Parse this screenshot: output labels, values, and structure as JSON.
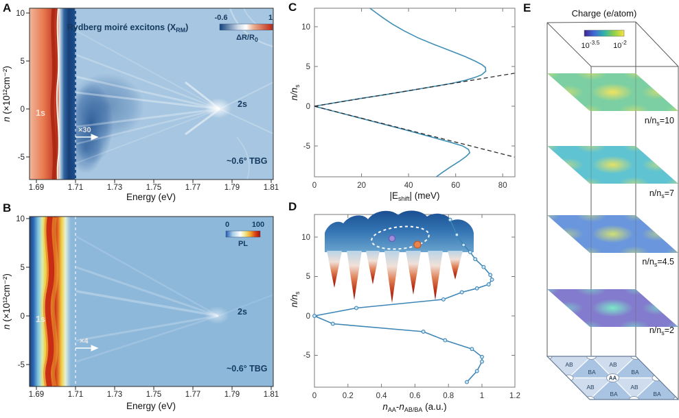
{
  "figure": {
    "description": "Rydberg moire excitons in ~0.6 deg twisted bilayer graphene figure with five panels"
  },
  "panels": {
    "a": {
      "letter": "A",
      "title_pre": "Rydberg moiré excitons (X",
      "title_sub": "RM",
      "title_post": ")",
      "cbar_min": "-0.6",
      "cbar_max": "1",
      "cbar_label_pre": "ΔR/R",
      "cbar_label_sub": "0",
      "xlabel": "Energy (eV)",
      "ylabel_n": "n",
      "ylabel_rest": " (×10¹²cm⁻²)",
      "x_ticks": [
        "1.69",
        "1.71",
        "1.73",
        "1.75",
        "1.77",
        "1.79",
        "1.81"
      ],
      "y_ticks": [
        "10",
        "5",
        "0",
        "-5"
      ],
      "ann_1s": "1s",
      "ann_2s": "2s",
      "ann_gain": "×30",
      "ann_sample": "~0.6° TBG"
    },
    "b": {
      "letter": "B",
      "cbar_min": "0",
      "cbar_max": "100",
      "cbar_label": "PL",
      "xlabel": "Energy (eV)",
      "ylabel_n": "n",
      "ylabel_rest": " (×10¹²cm⁻²)",
      "x_ticks": [
        "1.69",
        "1.71",
        "1.73",
        "1.75",
        "1.77",
        "1.79",
        "1.81"
      ],
      "y_ticks": [
        "10",
        "5",
        "0",
        "-5"
      ],
      "ann_1s": "1s",
      "ann_2s": "2s",
      "ann_gain": "×4",
      "ann_sample": "~0.6° TBG"
    },
    "c": {
      "letter": "C",
      "ylabel_pre": "n/n",
      "ylabel_sub": "s",
      "xlabel_pre": "|E",
      "xlabel_sub": "shift",
      "xlabel_post": "| (meV)",
      "x_ticks": [
        "0",
        "20",
        "40",
        "60",
        "80"
      ],
      "y_ticks": [
        "10",
        "5",
        "0",
        "-5"
      ]
    },
    "d": {
      "letter": "D",
      "ylabel_pre": "n/n",
      "ylabel_sub": "s",
      "xlabel_n1": "n",
      "xlabel_sub1": "AA",
      "xlabel_dash": "-",
      "xlabel_n2": "n",
      "xlabel_sub2": "AB/BA",
      "xlabel_post": " (a.u.)",
      "x_ticks": [
        "0",
        "0.2",
        "0.4",
        "0.6",
        "0.8",
        "1",
        "1.2"
      ],
      "y_ticks": [
        "10",
        "5",
        "0",
        "-5"
      ]
    },
    "e": {
      "letter": "E",
      "title": "Charge (e/atom)",
      "cbar_min_base": "10",
      "cbar_min_sup": "-3.5",
      "cbar_max_base": "10",
      "cbar_max_sup": "-2",
      "plane_pre": "n/n",
      "plane_sub": "s",
      "plane_posts": [
        "=10",
        "=7",
        "=4.5",
        "=2"
      ],
      "region_ab": "AB",
      "region_ba": "BA",
      "region_aa": "AA"
    }
  },
  "chart_data": [
    {
      "id": "A",
      "type": "heatmap",
      "title": "Rydberg moiré excitons (X_RM)",
      "xlabel": "Energy (eV)",
      "ylabel": "n (×10^12 cm^-2)",
      "xlim": [
        1.69,
        1.81
      ],
      "ylim": [
        -7.3,
        10.5
      ],
      "x_tick_values": [
        1.69,
        1.71,
        1.73,
        1.75,
        1.77,
        1.79,
        1.81
      ],
      "y_tick_values": [
        10,
        5,
        0,
        -5
      ],
      "colorbar": {
        "label": "ΔR/R_0",
        "min": -0.6,
        "max": 1
      },
      "annotations": [
        "1s",
        "2s",
        "×30",
        "~0.6° TBG"
      ],
      "features": {
        "resonance_1s_eV": 1.7,
        "resonance_2s_eV": 1.785,
        "dashed_boundary_eV": 1.71,
        "amplification_right_of_boundary": "×30"
      }
    },
    {
      "id": "B",
      "type": "heatmap",
      "title": "",
      "xlabel": "Energy (eV)",
      "ylabel": "n (×10^12 cm^-2)",
      "xlim": [
        1.69,
        1.81
      ],
      "ylim": [
        -7.25,
        10.2
      ],
      "x_tick_values": [
        1.69,
        1.71,
        1.73,
        1.75,
        1.77,
        1.79,
        1.81
      ],
      "y_tick_values": [
        10,
        5,
        0,
        -5
      ],
      "colorbar": {
        "label": "PL",
        "min": 0,
        "max": 100
      },
      "annotations": [
        "1s",
        "2s",
        "×4",
        "~0.6° TBG"
      ],
      "features": {
        "resonance_1s_eV": 1.701,
        "resonance_2s_eV": 1.783,
        "dashed_boundary_eV": 1.71,
        "amplification_right_of_boundary": "×4"
      }
    },
    {
      "id": "C",
      "type": "line",
      "xlabel": "|E_shift| (meV)",
      "ylabel": "n/n_s",
      "xlim": [
        0,
        85
      ],
      "ylim": [
        -8.9,
        12.4
      ],
      "grid": false,
      "series": [
        {
          "name": "energy-shift-upper-branch",
          "style": "solid",
          "color": "#3f8fb4",
          "points": [
            [
              0,
              0
            ],
            [
              10,
              0.5
            ],
            [
              20,
              1.0
            ],
            [
              30,
              1.45
            ],
            [
              40,
              1.95
            ],
            [
              50,
              2.45
            ],
            [
              58,
              2.85
            ],
            [
              64,
              3.25
            ],
            [
              68,
              3.6
            ],
            [
              71,
              3.95
            ],
            [
              72.8,
              4.4
            ],
            [
              72.7,
              4.85
            ],
            [
              71.3,
              5.2
            ],
            [
              68.5,
              5.65
            ],
            [
              64,
              6.25
            ],
            [
              58,
              6.95
            ],
            [
              51,
              7.75
            ],
            [
              44,
              8.6
            ],
            [
              38,
              9.5
            ],
            [
              33,
              10.35
            ],
            [
              29,
              11.15
            ],
            [
              26,
              11.8
            ],
            [
              23.5,
              12.35
            ]
          ]
        },
        {
          "name": "energy-shift-lower-branch",
          "style": "solid",
          "color": "#3f8fb4",
          "points": [
            [
              0,
              0
            ],
            [
              13,
              -1
            ],
            [
              26,
              -2
            ],
            [
              39,
              -3
            ],
            [
              50,
              -3.9
            ],
            [
              58,
              -4.55
            ],
            [
              63,
              -5.0
            ],
            [
              65.5,
              -5.45
            ],
            [
              66,
              -5.85
            ],
            [
              64.5,
              -6.3
            ],
            [
              61.5,
              -6.95
            ],
            [
              58,
              -7.6
            ],
            [
              54.5,
              -8.3
            ],
            [
              51.5,
              -8.95
            ]
          ]
        },
        {
          "name": "linear-fit-upper",
          "style": "dashed",
          "color": "#2a2a2a",
          "points": [
            [
              0,
              0
            ],
            [
              85,
              4.15
            ]
          ]
        },
        {
          "name": "linear-fit-lower",
          "style": "dashed",
          "color": "#2a2a2a",
          "points": [
            [
              0,
              0
            ],
            [
              85,
              -6.4
            ]
          ]
        }
      ]
    },
    {
      "id": "D",
      "type": "line-scatter",
      "xlabel": "n_AA-n_AB/BA (a.u.)",
      "ylabel": "n/n_s",
      "xlim": [
        0,
        1.2
      ],
      "ylim": [
        -9.0,
        12.9
      ],
      "grid": false,
      "series": [
        {
          "name": "charge-contrast",
          "style": "solid-markers",
          "color": "#3d85b5",
          "points": [
            [
              0.81,
              12.2
            ],
            [
              0.85,
              10.3
            ],
            [
              0.89,
              9.0
            ],
            [
              0.93,
              8.1
            ],
            [
              0.96,
              7.2
            ],
            [
              1.01,
              6.2
            ],
            [
              1.05,
              5.2
            ],
            [
              1.06,
              4.6
            ],
            [
              1.04,
              4.0
            ],
            [
              0.97,
              3.5
            ],
            [
              0.88,
              3.0
            ],
            [
              0.77,
              2.1
            ],
            [
              0.25,
              1.0
            ],
            [
              0,
              0
            ],
            [
              0.11,
              -1.0
            ],
            [
              0.65,
              -2.0
            ],
            [
              0.78,
              -3.1
            ],
            [
              0.94,
              -4.2
            ],
            [
              1.0,
              -5.2
            ],
            [
              1.0,
              -5.8
            ],
            [
              0.97,
              -7.0
            ],
            [
              0.91,
              -8.4
            ]
          ]
        }
      ],
      "inset": "3D moiré potential landscape with dashed orbit ellipse and electron (blue) / exciton (orange) dots"
    },
    {
      "id": "E",
      "type": "heatmap-stack",
      "title": "Charge (e/atom)",
      "colorbar": {
        "min_label": "10^-3.5",
        "max_label": "10^-2",
        "scale": "log"
      },
      "planes": [
        {
          "label": "n/n_s=10",
          "base_color": "#7ccfa2"
        },
        {
          "label": "n/n_s=7",
          "base_color": "#5fc3d2"
        },
        {
          "label": "n/n_s=4.5",
          "base_color": "#6a96dd"
        },
        {
          "label": "n/n_s=2",
          "base_color": "#837bcd"
        }
      ],
      "base_map_regions": [
        "AB",
        "BA",
        "AA"
      ]
    }
  ]
}
